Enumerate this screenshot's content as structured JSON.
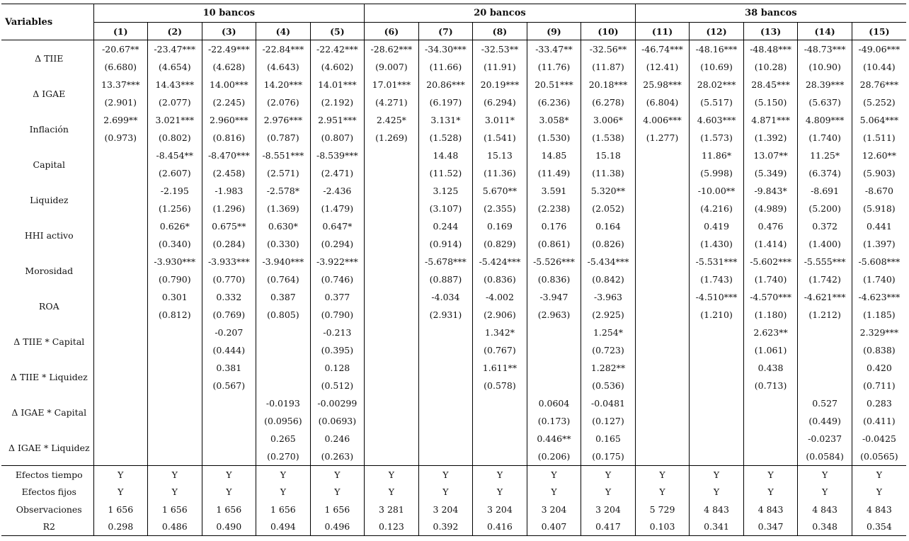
{
  "header": {
    "variables_label": "Variables",
    "groups": [
      "10 bancos",
      "20 bancos",
      "38 bancos"
    ],
    "columns": [
      "(1)",
      "(2)",
      "(3)",
      "(4)",
      "(5)",
      "(6)",
      "(7)",
      "(8)",
      "(9)",
      "(10)",
      "(11)",
      "(12)",
      "(13)",
      "(14)",
      "(15)"
    ]
  },
  "rows": [
    {
      "name": "Δ TIIE",
      "coef": [
        "-20.67**",
        "-23.47***",
        "-22.49***",
        "-22.84***",
        "-22.42***",
        "-28.62***",
        "-34.30***",
        "-32.53**",
        "-33.47**",
        "-32.56**",
        "-46.74***",
        "-48.16***",
        "-48.48***",
        "-48.73***",
        "-49.06***"
      ],
      "se": [
        "(6.680)",
        "(4.654)",
        "(4.628)",
        "(4.643)",
        "(4.602)",
        "(9.007)",
        "(11.66)",
        "(11.91)",
        "(11.76)",
        "(11.87)",
        "(12.41)",
        "(10.69)",
        "(10.28)",
        "(10.90)",
        "(10.44)"
      ]
    },
    {
      "name": "Δ IGAE",
      "coef": [
        "13.37***",
        "14.43***",
        "14.00***",
        "14.20***",
        "14.01***",
        "17.01***",
        "20.86***",
        "20.19***",
        "20.51***",
        "20.18***",
        "25.98***",
        "28.02***",
        "28.45***",
        "28.39***",
        "28.76***"
      ],
      "se": [
        "(2.901)",
        "(2.077)",
        "(2.245)",
        "(2.076)",
        "(2.192)",
        "(4.271)",
        "(6.197)",
        "(6.294)",
        "(6.236)",
        "(6.278)",
        "(6.804)",
        "(5.517)",
        "(5.150)",
        "(5.637)",
        "(5.252)"
      ]
    },
    {
      "name": "Inflación",
      "coef": [
        "2.699**",
        "3.021***",
        "2.960***",
        "2.976***",
        "2.951***",
        "2.425*",
        "3.131*",
        "3.011*",
        "3.058*",
        "3.006*",
        "4.006***",
        "4.603***",
        "4.871***",
        "4.809***",
        "5.064***"
      ],
      "se": [
        "(0.973)",
        "(0.802)",
        "(0.816)",
        "(0.787)",
        "(0.807)",
        "(1.269)",
        "(1.528)",
        "(1.541)",
        "(1.530)",
        "(1.538)",
        "(1.277)",
        "(1.573)",
        "(1.392)",
        "(1.740)",
        "(1.511)"
      ]
    },
    {
      "name": "Capital",
      "coef": [
        "",
        "-8.454**",
        "-8.470***",
        "-8.551***",
        "-8.539***",
        "",
        "14.48",
        "15.13",
        "14.85",
        "15.18",
        "",
        "11.86*",
        "13.07**",
        "11.25*",
        "12.60**"
      ],
      "se": [
        "",
        "(2.607)",
        "(2.458)",
        "(2.571)",
        "(2.471)",
        "",
        "(11.52)",
        "(11.36)",
        "(11.49)",
        "(11.38)",
        "",
        "(5.998)",
        "(5.349)",
        "(6.374)",
        "(5.903)"
      ]
    },
    {
      "name": "Liquidez",
      "coef": [
        "",
        "-2.195",
        "-1.983",
        "-2.578*",
        "-2.436",
        "",
        "3.125",
        "5.670**",
        "3.591",
        "5.320**",
        "",
        "-10.00**",
        "-9.843*",
        "-8.691",
        "-8.670"
      ],
      "se": [
        "",
        "(1.256)",
        "(1.296)",
        "(1.369)",
        "(1.479)",
        "",
        "(3.107)",
        "(2.355)",
        "(2.238)",
        "(2.052)",
        "",
        "(4.216)",
        "(4.989)",
        "(5.200)",
        "(5.918)"
      ]
    },
    {
      "name": "HHI activo",
      "coef": [
        "",
        "0.626*",
        "0.675**",
        "0.630*",
        "0.647*",
        "",
        "0.244",
        "0.169",
        "0.176",
        "0.164",
        "",
        "0.419",
        "0.476",
        "0.372",
        "0.441"
      ],
      "se": [
        "",
        "(0.340)",
        "(0.284)",
        "(0.330)",
        "(0.294)",
        "",
        "(0.914)",
        "(0.829)",
        "(0.861)",
        "(0.826)",
        "",
        "(1.430)",
        "(1.414)",
        "(1.400)",
        "(1.397)"
      ]
    },
    {
      "name": "Morosidad",
      "coef": [
        "",
        "-3.930***",
        "-3.933***",
        "-3.940***",
        "-3.922***",
        "",
        "-5.678***",
        "-5.424***",
        "-5.526***",
        "-5.434***",
        "",
        "-5.531***",
        "-5.602***",
        "-5.555***",
        "-5.608***"
      ],
      "se": [
        "",
        "(0.790)",
        "(0.770)",
        "(0.764)",
        "(0.746)",
        "",
        "(0.887)",
        "(0.836)",
        "(0.836)",
        "(0.842)",
        "",
        "(1.743)",
        "(1.740)",
        "(1.742)",
        "(1.740)"
      ]
    },
    {
      "name": "ROA",
      "coef": [
        "",
        "0.301",
        "0.332",
        "0.387",
        "0.377",
        "",
        "-4.034",
        "-4.002",
        "-3.947",
        "-3.963",
        "",
        "-4.510***",
        "-4.570***",
        "-4.621***",
        "-4.623***"
      ],
      "se": [
        "",
        "(0.812)",
        "(0.769)",
        "(0.805)",
        "(0.790)",
        "",
        "(2.931)",
        "(2.906)",
        "(2.963)",
        "(2.925)",
        "",
        "(1.210)",
        "(1.180)",
        "(1.212)",
        "(1.185)"
      ]
    },
    {
      "name": "Δ TIIE * Capital",
      "coef": [
        "",
        "",
        "-0.207",
        "",
        "-0.213",
        "",
        "",
        "1.342*",
        "",
        "1.254*",
        "",
        "",
        "2.623**",
        "",
        "2.329***"
      ],
      "se": [
        "",
        "",
        "(0.444)",
        "",
        "(0.395)",
        "",
        "",
        "(0.767)",
        "",
        "(0.723)",
        "",
        "",
        "(1.061)",
        "",
        "(0.838)"
      ]
    },
    {
      "name": "Δ TIIE * Liquidez",
      "coef": [
        "",
        "",
        "0.381",
        "",
        "0.128",
        "",
        "",
        "1.611**",
        "",
        "1.282**",
        "",
        "",
        "0.438",
        "",
        "0.420"
      ],
      "se": [
        "",
        "",
        "(0.567)",
        "",
        "(0.512)",
        "",
        "",
        "(0.578)",
        "",
        "(0.536)",
        "",
        "",
        "(0.713)",
        "",
        "(0.711)"
      ]
    },
    {
      "name": "Δ IGAE * Capital",
      "coef": [
        "",
        "",
        "",
        "-0.0193",
        "-0.00299",
        "",
        "",
        "",
        "0.0604",
        "-0.0481",
        "",
        "",
        "",
        "0.527",
        "0.283"
      ],
      "se": [
        "",
        "",
        "",
        "(0.0956)",
        "(0.0693)",
        "",
        "",
        "",
        "(0.173)",
        "(0.127)",
        "",
        "",
        "",
        "(0.449)",
        "(0.411)"
      ]
    },
    {
      "name": "Δ IGAE * Liquidez",
      "coef": [
        "",
        "",
        "",
        "0.265",
        "0.246",
        "",
        "",
        "",
        "0.446**",
        "0.165",
        "",
        "",
        "",
        "-0.0237",
        "-0.0425"
      ],
      "se": [
        "",
        "",
        "",
        "(0.270)",
        "(0.263)",
        "",
        "",
        "",
        "(0.206)",
        "(0.175)",
        "",
        "",
        "",
        "(0.0584)",
        "(0.0565)"
      ]
    }
  ],
  "stats": [
    {
      "name": "Efectos tiempo",
      "values": [
        "Y",
        "Y",
        "Y",
        "Y",
        "Y",
        "Y",
        "Y",
        "Y",
        "Y",
        "Y",
        "Y",
        "Y",
        "Y",
        "Y",
        "Y"
      ]
    },
    {
      "name": "Efectos fijos",
      "values": [
        "Y",
        "Y",
        "Y",
        "Y",
        "Y",
        "Y",
        "Y",
        "Y",
        "Y",
        "Y",
        "Y",
        "Y",
        "Y",
        "Y",
        "Y"
      ]
    },
    {
      "name": "Observaciones",
      "values": [
        "1 656",
        "1 656",
        "1 656",
        "1 656",
        "1 656",
        "3 281",
        "3 204",
        "3 204",
        "3 204",
        "3 204",
        "5 729",
        "4 843",
        "4 843",
        "4 843",
        "4 843"
      ]
    },
    {
      "name": "R2",
      "values": [
        "0.298",
        "0.486",
        "0.490",
        "0.494",
        "0.496",
        "0.123",
        "0.392",
        "0.416",
        "0.407",
        "0.417",
        "0.103",
        "0.341",
        "0.347",
        "0.348",
        "0.354"
      ]
    }
  ]
}
